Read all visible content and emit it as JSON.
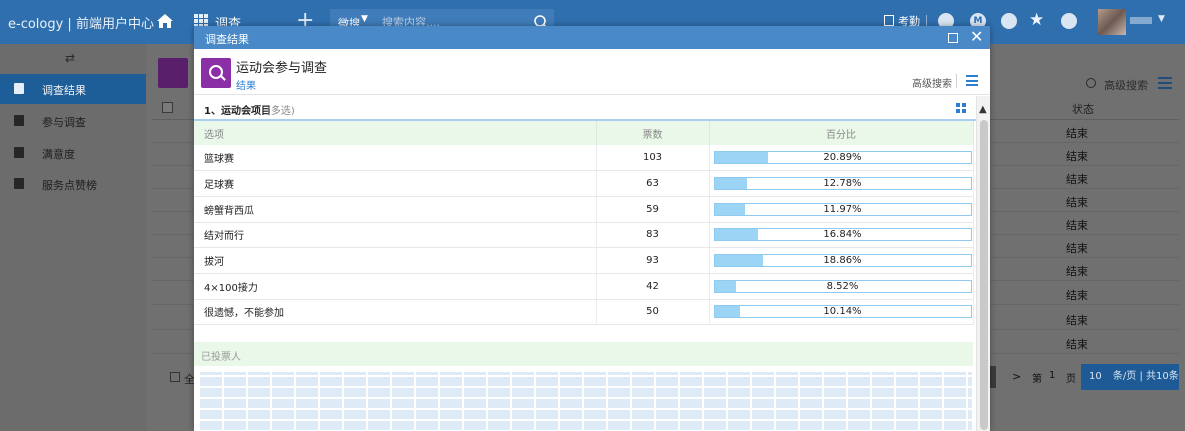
{
  "topbar": {
    "brand": "e-cology | 前端用户中心",
    "module": "调查",
    "search_category": "微搜",
    "search_placeholder": "搜索内容....",
    "attendance": "考勤",
    "circle_icons": [
      "",
      "M",
      "",
      ""
    ]
  },
  "sidebar": {
    "items": [
      {
        "label": "调查结果",
        "icon": "clipboard-check-icon",
        "active": true
      },
      {
        "label": "参与调查",
        "icon": "person-card-icon",
        "active": false
      },
      {
        "label": "满意度",
        "icon": "copy-icon",
        "active": false
      },
      {
        "label": "服务点赞榜",
        "icon": "copy-icon",
        "active": false
      }
    ]
  },
  "background": {
    "adv_search": "高级搜索",
    "column_status": "状态",
    "row_status": [
      "结束",
      "结束",
      "结束",
      "结束",
      "结束",
      "结束",
      "结束",
      "结束",
      "结束",
      "结束"
    ],
    "select_all": "全选",
    "pager": {
      "next": ">",
      "di": "第",
      "page": "1",
      "ye": "页",
      "size": "10",
      "size_text": "条/页 | 共10条"
    }
  },
  "modal": {
    "title": "调查结果",
    "app_name": "运动会参与调查",
    "app_sub": "结果",
    "adv_search": "高级搜索",
    "question_title": "1、运动会项目",
    "question_type": "(多选)",
    "columns": {
      "option": "选项",
      "count": "票数",
      "percent": "百分比"
    },
    "rows": [
      {
        "option": "篮球赛",
        "count": "103",
        "percent": "20.89%",
        "fraction": 0.2089
      },
      {
        "option": "足球赛",
        "count": "63",
        "percent": "12.78%",
        "fraction": 0.1278
      },
      {
        "option": "螃蟹背西瓜",
        "count": "59",
        "percent": "11.97%",
        "fraction": 0.1197
      },
      {
        "option": "结对而行",
        "count": "83",
        "percent": "16.84%",
        "fraction": 0.1684
      },
      {
        "option": "拔河",
        "count": "93",
        "percent": "18.86%",
        "fraction": 0.1886
      },
      {
        "option": "4×100接力",
        "count": "42",
        "percent": "8.52%",
        "fraction": 0.0852
      },
      {
        "option": "很遗憾，不能参加",
        "count": "50",
        "percent": "10.14%",
        "fraction": 0.1014
      }
    ],
    "voters_label": "已投票人"
  },
  "colors": {
    "topbar": "#2f6fae",
    "modal_title": "#4a89c7",
    "accent_purple": "#8a2fa6",
    "bar_fill": "#9bd4f4",
    "header_green": "#eaf8ea"
  }
}
